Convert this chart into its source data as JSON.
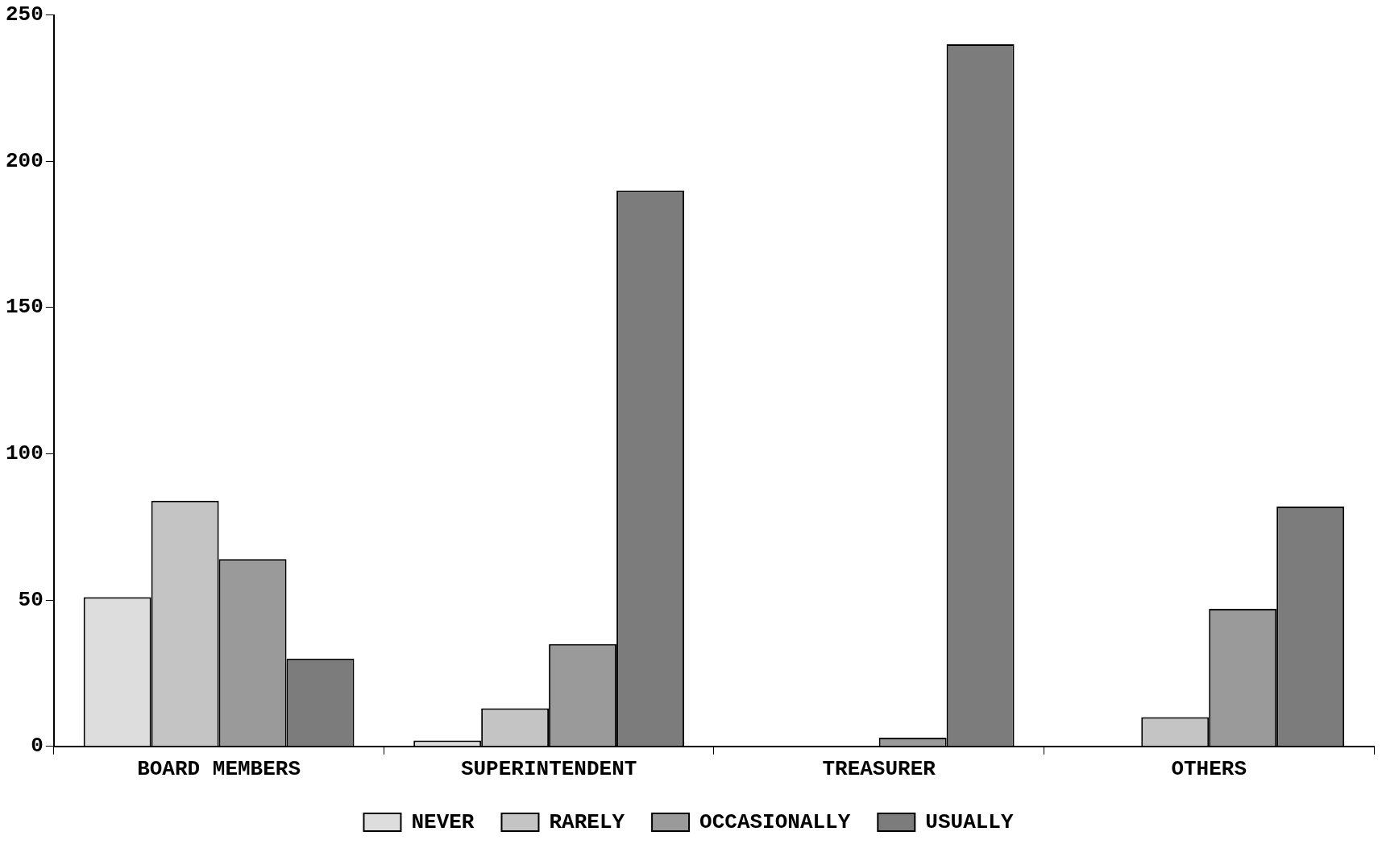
{
  "chart_data": {
    "type": "bar",
    "categories": [
      "BOARD MEMBERS",
      "SUPERINTENDENT",
      "TREASURER",
      "OTHERS"
    ],
    "series": [
      {
        "name": "NEVER",
        "color": "#dddddd",
        "values": [
          51,
          2,
          0,
          0
        ]
      },
      {
        "name": "RARELY",
        "color": "#c4c4c4",
        "values": [
          84,
          13,
          0,
          10
        ]
      },
      {
        "name": "OCCASIONALLY",
        "color": "#9a9a9a",
        "values": [
          64,
          35,
          3,
          47
        ]
      },
      {
        "name": "USUALLY",
        "color": "#7c7c7c",
        "values": [
          30,
          190,
          240,
          82
        ]
      }
    ],
    "ylim": [
      0,
      250
    ],
    "yticks": [
      0,
      50,
      100,
      150,
      200,
      250
    ],
    "grid": false,
    "legend": "bottom"
  }
}
